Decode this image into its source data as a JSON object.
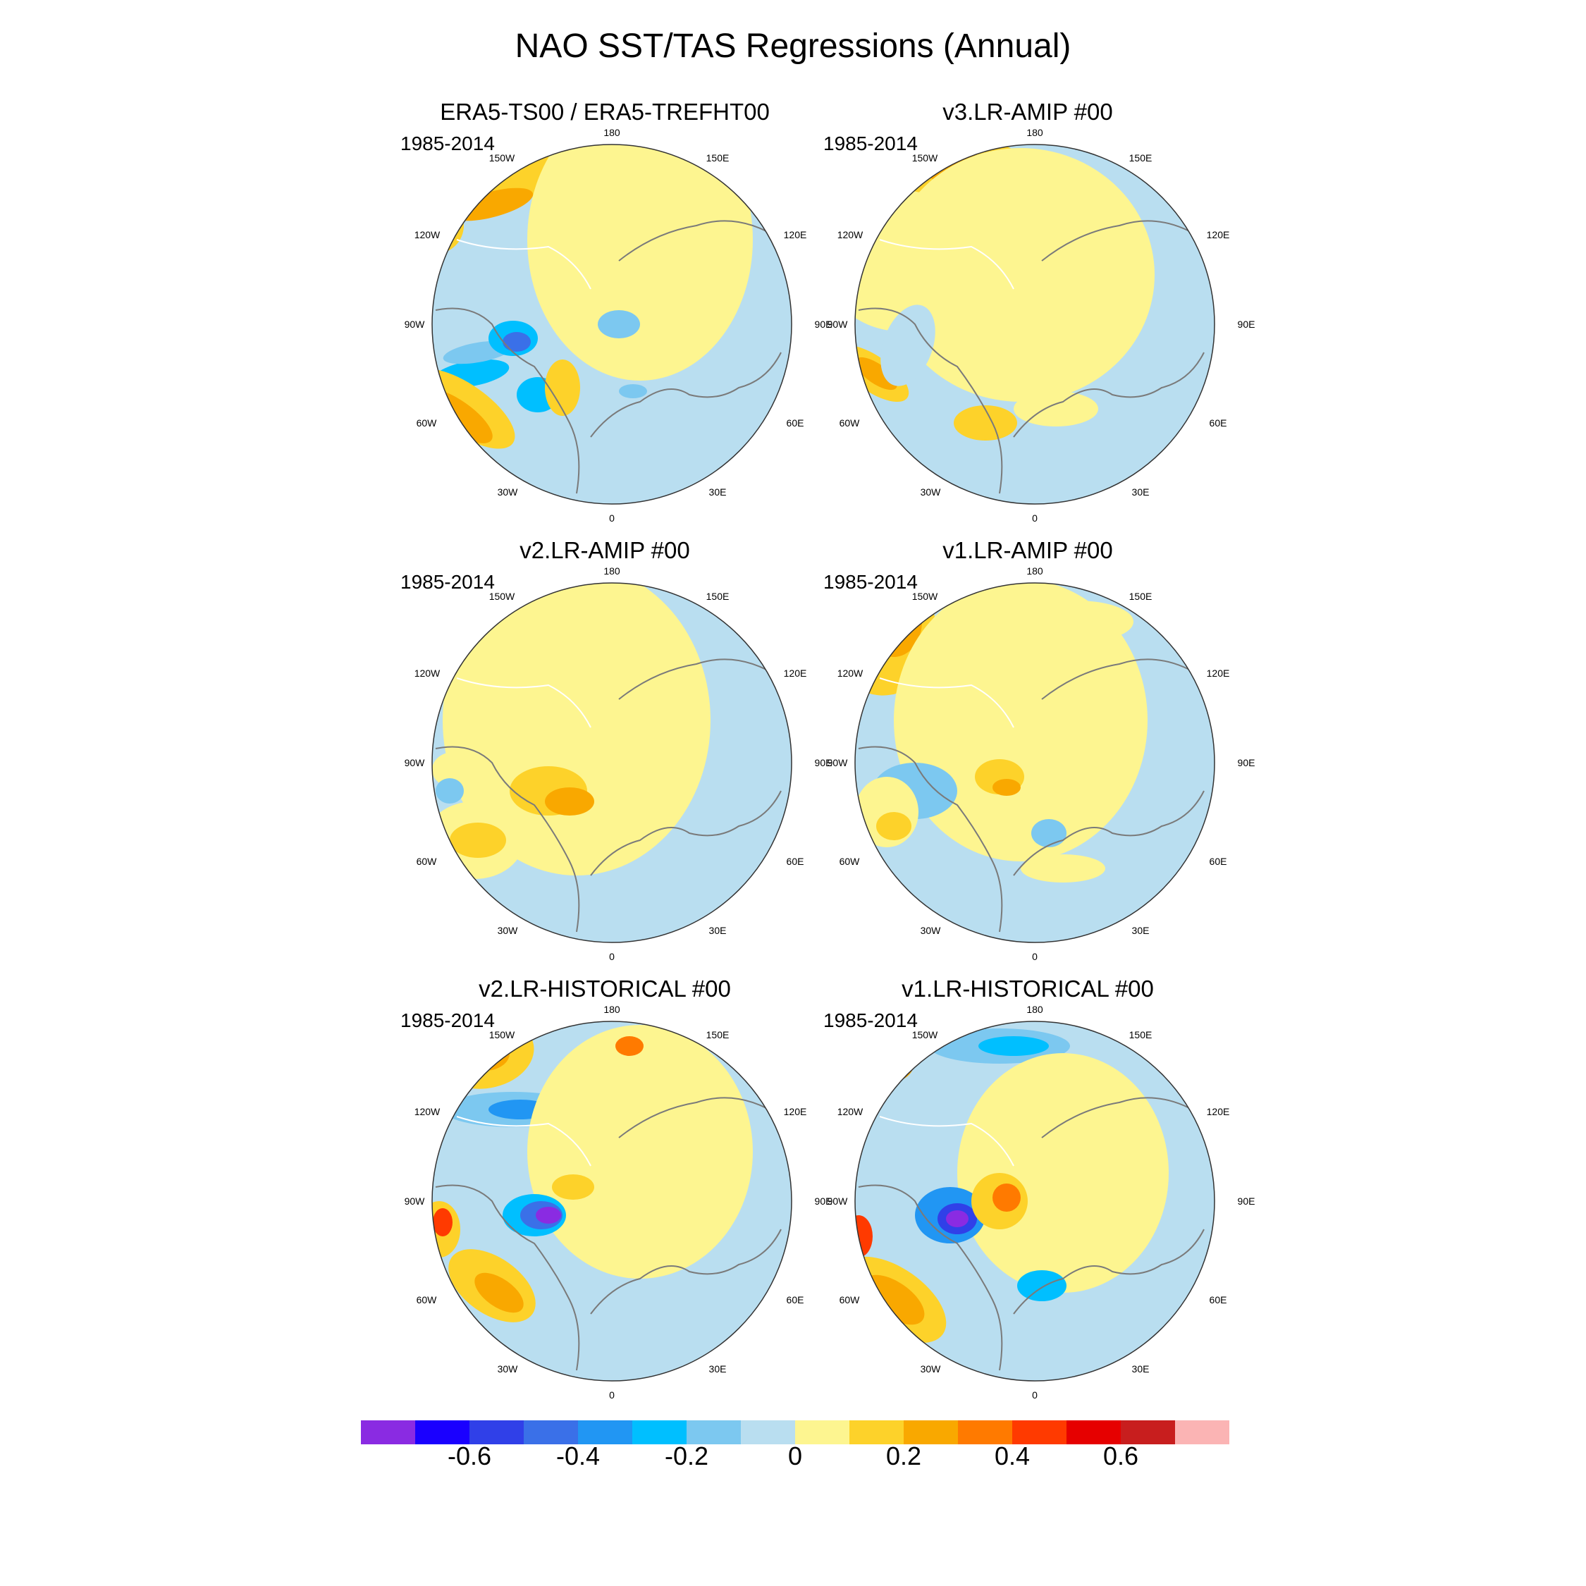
{
  "title": "NAO SST/TAS Regressions (Annual)",
  "panels": [
    {
      "title": "ERA5-TS00 / ERA5-TREFHT00",
      "period": "1985-2014",
      "scheme": "era5"
    },
    {
      "title": "v3.LR-AMIP  #00",
      "period": "1985-2014",
      "scheme": "v3amip"
    },
    {
      "title": "v2.LR-AMIP  #00",
      "period": "1985-2014",
      "scheme": "v2amip"
    },
    {
      "title": "v1.LR-AMIP  #00",
      "period": "1985-2014",
      "scheme": "v1amip"
    },
    {
      "title": "v2.LR-HISTORICAL  #00",
      "period": "1985-2014",
      "scheme": "v2hist"
    },
    {
      "title": "v1.LR-HISTORICAL  #00",
      "period": "1985-2014",
      "scheme": "v1hist"
    }
  ],
  "longitude_labels": [
    "180",
    "150E",
    "120E",
    "90E",
    "60E",
    "30E",
    "0",
    "30W",
    "60W",
    "90W",
    "120W",
    "150W"
  ],
  "colorbar": {
    "colors": [
      "#8a2be2",
      "#1a00ff",
      "#3040e8",
      "#3a70e8",
      "#2196f3",
      "#00bfff",
      "#7cc8f0",
      "#b9def0",
      "#fdf590",
      "#fdd22a",
      "#f9a800",
      "#ff7a00",
      "#ff3a00",
      "#e60000",
      "#c81e1e",
      "#fbb4b4"
    ],
    "labels": [
      "-0.6",
      "-0.4",
      "-0.2",
      "0",
      "0.2",
      "0.4",
      "0.6"
    ]
  }
}
